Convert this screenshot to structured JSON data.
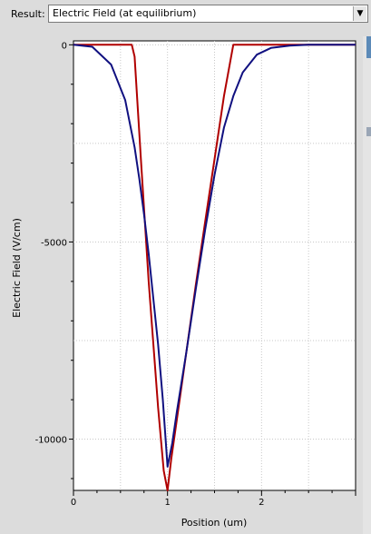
{
  "toolbar": {
    "result_label": "Result:",
    "selected_result": "Electric Field (at equilibrium)"
  },
  "chart_data": {
    "type": "line",
    "xlabel": "Position (um)",
    "ylabel": "Electric Field (V/cm)",
    "xlim": [
      0,
      3.0
    ],
    "ylim": [
      -11300,
      100
    ],
    "x_ticks": [
      "0",
      "1",
      "2"
    ],
    "y_ticks": [
      "0",
      "-5000",
      "-10000"
    ],
    "grid": true,
    "series": [
      {
        "color": "#b00000",
        "x": [
          0,
          0.62,
          0.65,
          0.72,
          0.8,
          0.9,
          0.96,
          1.0,
          1.04,
          1.1,
          1.2,
          1.3,
          1.4,
          1.5,
          1.6,
          1.7,
          2.3,
          3.0
        ],
        "y": [
          0,
          0,
          -300,
          -3000,
          -6000,
          -9200,
          -10800,
          -11300,
          -10500,
          -9500,
          -7800,
          -6100,
          -4500,
          -2900,
          -1300,
          0,
          0,
          0
        ]
      },
      {
        "color": "#101080",
        "x": [
          0,
          0.2,
          0.4,
          0.55,
          0.65,
          0.7,
          0.75,
          0.8,
          0.9,
          0.95,
          1.0,
          1.05,
          1.1,
          1.2,
          1.3,
          1.4,
          1.5,
          1.6,
          1.7,
          1.8,
          1.95,
          2.1,
          2.3,
          2.5,
          3.0
        ],
        "y": [
          0,
          -50,
          -500,
          -1400,
          -2600,
          -3400,
          -4300,
          -5300,
          -7600,
          -9000,
          -10700,
          -10100,
          -9300,
          -7800,
          -6200,
          -4700,
          -3300,
          -2100,
          -1300,
          -700,
          -250,
          -80,
          -20,
          0,
          0
        ]
      }
    ]
  }
}
